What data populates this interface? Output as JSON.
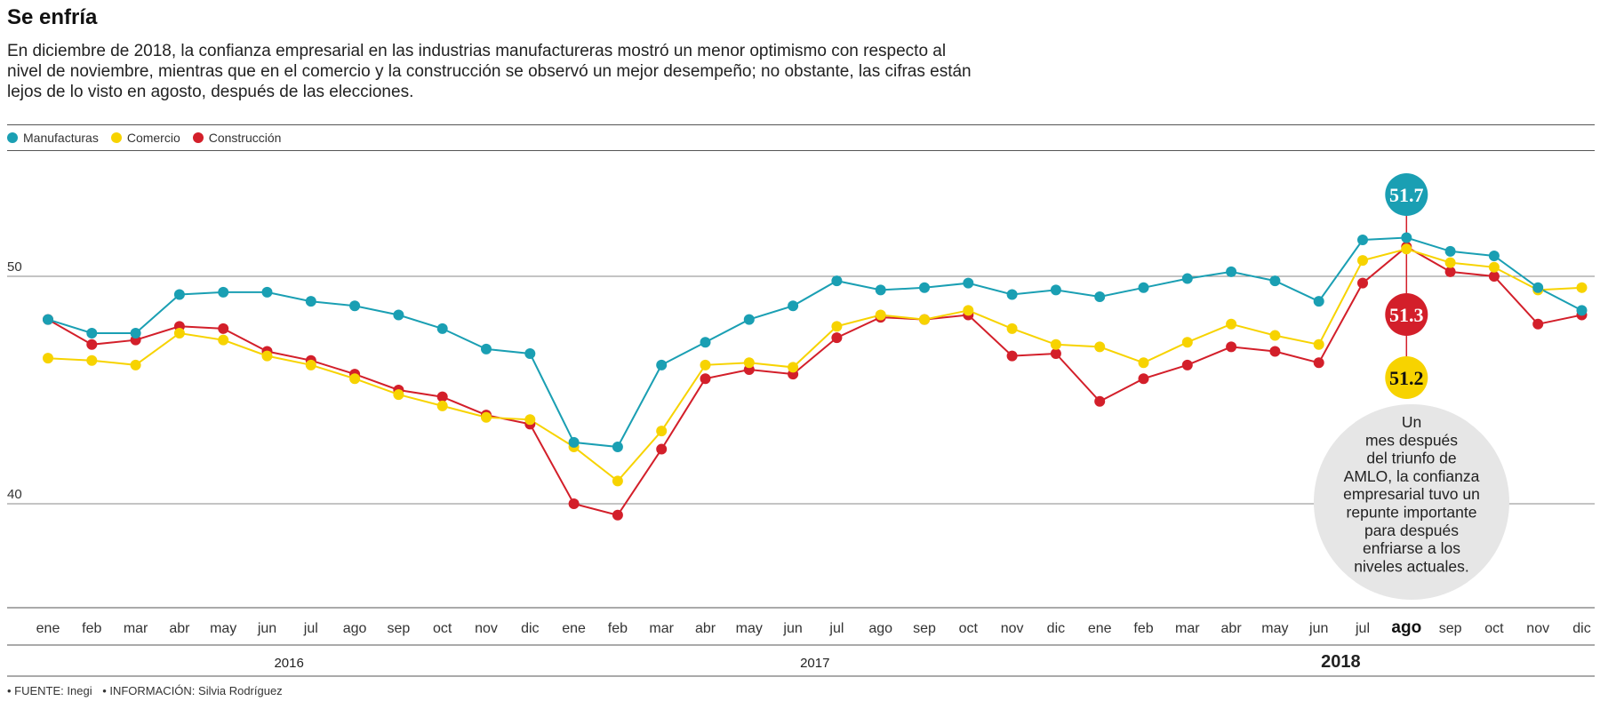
{
  "header": {
    "title": "Se enfría",
    "subtitle": "En diciembre de 2018, la confianza empresarial en las industrias manufactureras mostró un menor optimismo con respecto al nivel de noviembre, mientras que en el comercio y la construcción se observó un mejor desempeño; no obstante, las cifras están lejos de lo visto en agosto, después de las elecciones."
  },
  "legend": [
    {
      "label": "Manufacturas",
      "color": "#1a9fb3"
    },
    {
      "label": "Comercio",
      "color": "#f7d300"
    },
    {
      "label": "Construcción",
      "color": "#d31f2a"
    }
  ],
  "footer": {
    "source": "• FUENTE: Inegi",
    "info": "• INFORMACIÓN: Silvia Rodríguez"
  },
  "chart_data": {
    "type": "line",
    "categories": [
      "ene",
      "feb",
      "mar",
      "abr",
      "may",
      "jun",
      "jul",
      "ago",
      "sep",
      "oct",
      "nov",
      "dic",
      "ene",
      "feb",
      "mar",
      "abr",
      "may",
      "jun",
      "jul",
      "ago",
      "sep",
      "oct",
      "nov",
      "dic",
      "ene",
      "feb",
      "mar",
      "abr",
      "may",
      "jun",
      "jul",
      "ago",
      "sep",
      "oct",
      "nov",
      "dic"
    ],
    "highlight_index": 31,
    "years": [
      {
        "label": "2016",
        "start": 0,
        "end": 11,
        "bold": false
      },
      {
        "label": "2017",
        "start": 12,
        "end": 23,
        "bold": false
      },
      {
        "label": "2018",
        "start": 24,
        "end": 35,
        "bold": true
      }
    ],
    "yticks": [
      40,
      50
    ],
    "ylim": [
      35.5,
      55
    ],
    "series": [
      {
        "name": "Manufacturas",
        "color": "#1a9fb3",
        "values": [
          48.1,
          47.5,
          47.5,
          49.2,
          49.3,
          49.3,
          48.9,
          48.7,
          48.3,
          47.7,
          46.8,
          46.6,
          42.7,
          42.5,
          46.1,
          47.1,
          48.1,
          48.7,
          49.8,
          49.4,
          49.5,
          49.7,
          49.2,
          49.4,
          49.1,
          49.5,
          49.9,
          50.2,
          49.8,
          48.9,
          51.6,
          51.7,
          51.1,
          50.9,
          49.5,
          48.5
        ]
      },
      {
        "name": "Comercio",
        "color": "#f7d300",
        "values": [
          46.4,
          46.3,
          46.1,
          47.5,
          47.2,
          46.5,
          46.1,
          45.5,
          44.8,
          44.3,
          43.8,
          43.7,
          42.5,
          41.0,
          43.2,
          46.1,
          46.2,
          46.0,
          47.8,
          48.3,
          48.1,
          48.5,
          47.7,
          47.0,
          46.9,
          46.2,
          47.1,
          47.9,
          47.4,
          47.0,
          50.7,
          51.2,
          50.6,
          50.4,
          49.4,
          49.5
        ]
      },
      {
        "name": "Construcción",
        "color": "#d31f2a",
        "values": [
          48.1,
          47.0,
          47.2,
          47.8,
          47.7,
          46.7,
          46.3,
          45.7,
          45.0,
          44.7,
          43.9,
          43.5,
          40.0,
          39.5,
          42.4,
          45.5,
          45.9,
          45.7,
          47.3,
          48.2,
          48.1,
          48.3,
          46.5,
          46.6,
          44.5,
          45.5,
          46.1,
          46.9,
          46.7,
          46.2,
          49.7,
          51.3,
          50.2,
          50.0,
          47.9,
          48.3
        ]
      }
    ],
    "annotations": {
      "values": [
        "51.7",
        "51.3",
        "51.2"
      ],
      "note": "Un mes después del triunfo de AMLO, la confianza empresarial tuvo un repunte importante para después enfriarse a los niveles actuales."
    }
  }
}
